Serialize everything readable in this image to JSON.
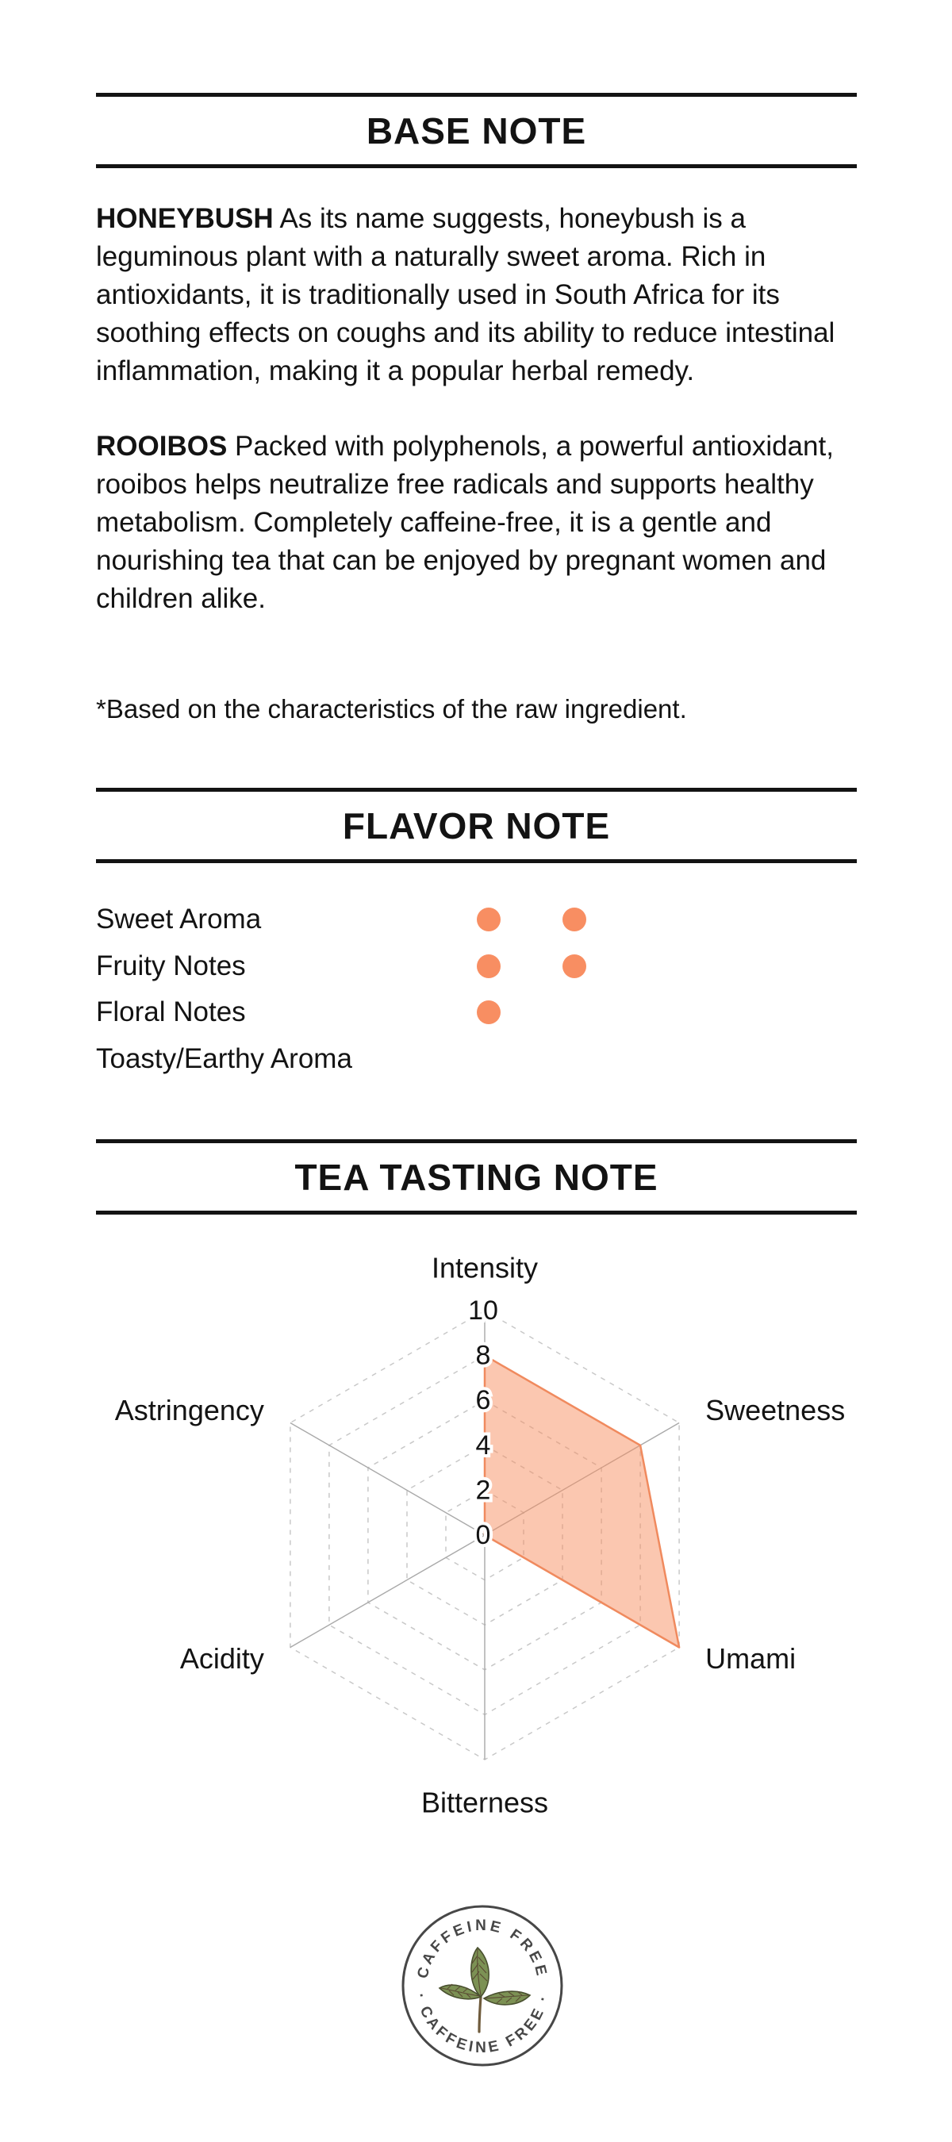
{
  "page": {
    "background": "#ffffff",
    "text_color": "#131313",
    "accent": "#F88E62"
  },
  "sections": {
    "base_note": {
      "title": "BASE NOTE",
      "paragraphs": [
        {
          "lead": "HONEYBUSH",
          "text": "As its name suggests, honeybush is a leguminous plant with a naturally sweet aroma. Rich in antioxidants, it is traditionally used in South Africa for its soothing effects on coughs and its ability to reduce intestinal inflammation, making it a popular herbal remedy."
        },
        {
          "lead": "ROOIBOS",
          "text": "Packed with polyphenols, a powerful antioxidant, rooibos helps neutralize free radicals and supports healthy metabolism. Completely caffeine-free, it is a gentle and nourishing tea that can be enjoyed by pregnant women and children alike."
        }
      ],
      "footnote": "*Based on the characteristics of the raw ingredient."
    },
    "flavor_note": {
      "title": "FLAVOR NOTE",
      "dot_color": "#F88E62",
      "items": [
        {
          "label": "Sweet Aroma",
          "dots": 2
        },
        {
          "label": "Fruity Notes",
          "dots": 2
        },
        {
          "label": "Floral Notes",
          "dots": 1
        },
        {
          "label": "Toasty/Earthy Aroma",
          "dots": 0
        }
      ]
    },
    "tasting_note": {
      "title": "TEA TASTING NOTE"
    },
    "badge": {
      "ring_text_top": "CAFFEINE FREE",
      "ring_text_bottom": "· CAFFEINE FREE ·",
      "leaf_icon": "tea-leaf-sprig",
      "circle_color": "#474747",
      "text_color": "#474747",
      "leaf_color": "#7C9154",
      "leaf_outline_color": "#49502F",
      "leaf_vein_color": "#5A4A33",
      "stem_color": "#6F5B3C"
    }
  },
  "chart_data": {
    "type": "radar",
    "title": "TEA TASTING NOTE",
    "categories": [
      "Intensity",
      "Sweetness",
      "Umami",
      "Bitterness",
      "Acidity",
      "Astringency"
    ],
    "values": [
      8,
      8,
      10,
      0,
      0,
      0
    ],
    "ticks": [
      0,
      2,
      4,
      6,
      8,
      10
    ],
    "range": [
      0,
      10
    ],
    "grid": "dashed-concentric-hexagons",
    "grid_color": "#C8C8C8",
    "axis_line_color": "#A9A9A9",
    "fill_color": "#F78F62",
    "fill_opacity": 0.5,
    "stroke_color": "#F08A5E",
    "legend": "none"
  }
}
